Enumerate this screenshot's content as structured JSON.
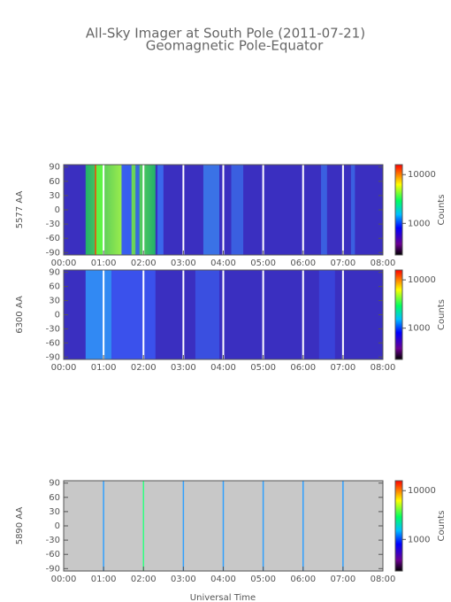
{
  "title": "All-Sky Imager at South Pole (2011-07-21)",
  "subtitle": "Geomagnetic Pole-Equator",
  "x_label": "Universal Time",
  "chart_data": [
    {
      "type": "keogram",
      "y_label": "5577 AA",
      "colorbar_label": "Counts",
      "xlim": [
        0,
        8
      ],
      "xticks": [
        {
          "value": 0,
          "label": "00:00"
        },
        {
          "value": 1,
          "label": "01:00"
        },
        {
          "value": 2,
          "label": "02:00"
        },
        {
          "value": 3,
          "label": "03:00"
        },
        {
          "value": 4,
          "label": "04:00"
        },
        {
          "value": 5,
          "label": "05:00"
        },
        {
          "value": 6,
          "label": "06:00"
        },
        {
          "value": 7,
          "label": "07:00"
        },
        {
          "value": 8,
          "label": "08:00"
        }
      ],
      "ylim": [
        -95,
        95
      ],
      "yticks": [
        90,
        60,
        30,
        0,
        -30,
        -60,
        -90
      ],
      "clim": [
        225,
        16000
      ],
      "clog": true,
      "cticks": [
        10000,
        1000
      ]
    },
    {
      "type": "keogram",
      "y_label": "6300 AA",
      "colorbar_label": "Counts",
      "xlim": [
        0,
        8
      ],
      "xticks": [
        {
          "value": 0,
          "label": "00:00"
        },
        {
          "value": 1,
          "label": "01:00"
        },
        {
          "value": 2,
          "label": "02:00"
        },
        {
          "value": 3,
          "label": "03:00"
        },
        {
          "value": 4,
          "label": "04:00"
        },
        {
          "value": 5,
          "label": "05:00"
        },
        {
          "value": 6,
          "label": "06:00"
        },
        {
          "value": 7,
          "label": "07:00"
        },
        {
          "value": 8,
          "label": "08:00"
        }
      ],
      "ylim": [
        -95,
        95
      ],
      "yticks": [
        90,
        60,
        30,
        0,
        -30,
        -60,
        -90
      ],
      "clim": [
        225,
        16000
      ],
      "clog": true,
      "cticks": [
        10000,
        1000
      ]
    },
    {
      "type": "keogram",
      "y_label": "5890 AA",
      "colorbar_label": "Counts",
      "xlim": [
        0,
        8
      ],
      "xticks": [
        {
          "value": 0,
          "label": "00:00"
        },
        {
          "value": 1,
          "label": "01:00"
        },
        {
          "value": 2,
          "label": "02:00"
        },
        {
          "value": 3,
          "label": "03:00"
        },
        {
          "value": 4,
          "label": "04:00"
        },
        {
          "value": 5,
          "label": "05:00"
        },
        {
          "value": 6,
          "label": "06:00"
        },
        {
          "value": 7,
          "label": "07:00"
        },
        {
          "value": 8,
          "label": "08:00"
        }
      ],
      "ylim": [
        -95,
        95
      ],
      "yticks": [
        90,
        60,
        30,
        0,
        -30,
        -60,
        -90
      ],
      "clim": [
        225,
        16000
      ],
      "clog": true,
      "cticks": [
        10000,
        1000
      ]
    }
  ]
}
